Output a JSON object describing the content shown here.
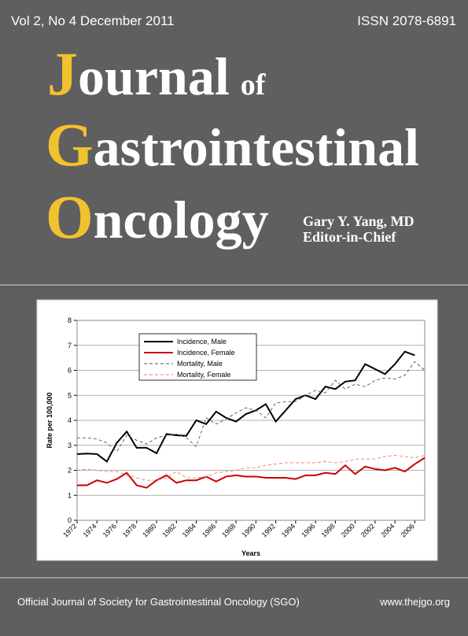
{
  "header": {
    "issue": "Vol 2, No 4  December 2011",
    "issn": "ISSN 2078-6891"
  },
  "title": [
    {
      "initial": "J",
      "rest": "ournal",
      "small": "of"
    },
    {
      "initial": "G",
      "rest": "astrointestinal"
    },
    {
      "initial": "O",
      "rest": "ncology"
    }
  ],
  "editor": {
    "name": "Gary Y. Yang, MD",
    "role": "Editor-in-Chief"
  },
  "chart_data": {
    "type": "line",
    "xlabel": "Years",
    "ylabel": "Rate per 100,000",
    "x": [
      1972,
      1973,
      1974,
      1975,
      1976,
      1977,
      1978,
      1979,
      1980,
      1981,
      1982,
      1983,
      1984,
      1985,
      1986,
      1987,
      1988,
      1989,
      1990,
      1991,
      1992,
      1993,
      1994,
      1995,
      1996,
      1997,
      1998,
      1999,
      2000,
      2001,
      2002,
      2003,
      2004,
      2005,
      2006,
      2007
    ],
    "xlim": [
      1972,
      2007
    ],
    "xticks": [
      1972,
      1974,
      1976,
      1978,
      1980,
      1982,
      1984,
      1986,
      1988,
      1990,
      1992,
      1994,
      1996,
      1998,
      2000,
      2002,
      2004,
      2006
    ],
    "ylim": [
      0,
      8
    ],
    "yticks": [
      0,
      1,
      2,
      3,
      4,
      5,
      6,
      7,
      8
    ],
    "grid": true,
    "series": [
      {
        "name": "Incidence, Male",
        "color": "#000000",
        "linestyle": "solid",
        "values": [
          2.65,
          2.67,
          2.65,
          2.35,
          3.1,
          3.55,
          2.9,
          2.9,
          2.68,
          3.45,
          3.4,
          3.38,
          4.0,
          3.85,
          4.35,
          4.1,
          3.95,
          4.25,
          4.4,
          4.65,
          3.95,
          4.4,
          4.85,
          5.0,
          4.85,
          5.35,
          5.25,
          5.55,
          5.6,
          6.25,
          6.05,
          5.85,
          6.25,
          6.75,
          6.6,
          null
        ]
      },
      {
        "name": "Incidence, Female",
        "color": "#cc0000",
        "linestyle": "solid",
        "values": [
          1.4,
          1.4,
          1.6,
          1.5,
          1.65,
          1.9,
          1.4,
          1.3,
          1.6,
          1.8,
          1.5,
          1.6,
          1.6,
          1.75,
          1.55,
          1.75,
          1.8,
          1.75,
          1.75,
          1.7,
          1.7,
          1.7,
          1.65,
          1.8,
          1.8,
          1.9,
          1.85,
          2.2,
          1.85,
          2.15,
          2.05,
          2.0,
          2.1,
          1.95,
          2.25,
          2.5
        ]
      },
      {
        "name": "Mortality, Male",
        "color": "#555555",
        "linestyle": "dashed",
        "values": [
          3.3,
          3.3,
          3.25,
          3.1,
          2.75,
          3.4,
          3.2,
          3.05,
          3.3,
          3.4,
          3.45,
          3.3,
          2.95,
          4.1,
          3.85,
          4.05,
          4.3,
          4.5,
          4.4,
          4.1,
          4.7,
          4.75,
          4.75,
          5.0,
          5.2,
          5.1,
          5.6,
          5.25,
          5.45,
          5.35,
          5.6,
          5.7,
          5.65,
          5.8,
          6.35,
          6.0
        ]
      },
      {
        "name": "Mortality, Female",
        "color": "#e8805a",
        "linestyle": "dashed",
        "values": [
          2.0,
          2.05,
          2.0,
          1.95,
          1.95,
          1.8,
          1.7,
          1.6,
          1.6,
          1.7,
          1.95,
          1.7,
          1.7,
          1.75,
          1.9,
          1.95,
          2.0,
          2.1,
          2.1,
          2.2,
          2.25,
          2.3,
          2.3,
          2.3,
          2.3,
          2.35,
          2.3,
          2.35,
          2.45,
          2.45,
          2.45,
          2.55,
          2.6,
          2.55,
          2.5,
          2.6
        ]
      }
    ]
  },
  "footer": {
    "society": "Official Journal of Society for Gastrointestinal Oncology (SGO)",
    "url": "www.thejgo.org"
  }
}
